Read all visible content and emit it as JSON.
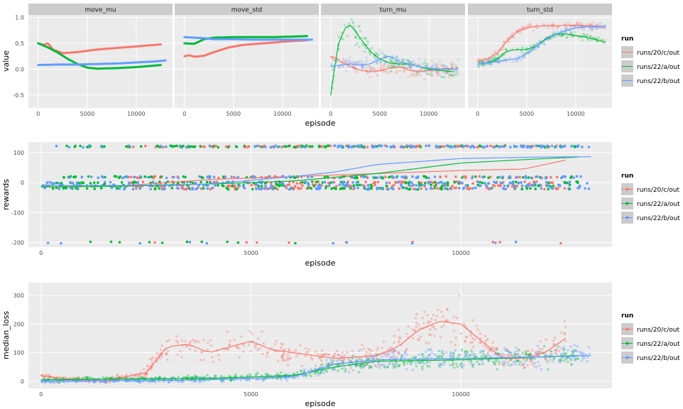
{
  "legend": {
    "title": "run",
    "items": [
      "runs/20/c/out",
      "runs/22/a/out",
      "runs/22/b/out"
    ]
  },
  "colors": {
    "runs/20/c/out": "#F8766D",
    "runs/22/a/out": "#00BA38",
    "runs/22/b/out": "#619CFF",
    "panel_bg": "#EBEBEB",
    "grid": "#FFFFFF",
    "strip_bg": "#CCCCCC"
  },
  "chart_data": [
    {
      "type": "line",
      "facets": [
        "move_mu",
        "move_std",
        "turn_mu",
        "turn_std"
      ],
      "xlabel": "episode",
      "ylabel": "value",
      "ylim": [
        -0.75,
        1.05
      ],
      "y_ticks": [
        "-0.5",
        "0.0",
        "0.5",
        "1.0"
      ],
      "x_ticks": [
        "0",
        "5000",
        "10000"
      ],
      "grid": true,
      "legend_position": "right",
      "panels": [
        {
          "facet": "move_mu",
          "series": [
            {
              "name": "runs/20/c/out",
              "x": [
                0,
                500,
                1000,
                1500,
                2500,
                4000,
                6000,
                8000,
                10000,
                12500
              ],
              "y": [
                0.5,
                0.47,
                0.5,
                0.38,
                0.31,
                0.33,
                0.38,
                0.41,
                0.44,
                0.48
              ]
            },
            {
              "name": "runs/22/a/out",
              "x": [
                0,
                1000,
                2000,
                3000,
                4000,
                5000,
                6000,
                8000,
                10000,
                12500
              ],
              "y": [
                0.5,
                0.42,
                0.32,
                0.2,
                0.1,
                0.03,
                0.01,
                0.02,
                0.04,
                0.08
              ]
            },
            {
              "name": "runs/22/b/out",
              "x": [
                0,
                2000,
                4000,
                6000,
                8000,
                10000,
                12000,
                13000
              ],
              "y": [
                0.08,
                0.09,
                0.09,
                0.1,
                0.11,
                0.13,
                0.15,
                0.17
              ]
            }
          ]
        },
        {
          "facet": "move_std",
          "series": [
            {
              "name": "runs/20/c/out",
              "x": [
                0,
                500,
                1000,
                2000,
                3000,
                4500,
                6000,
                8000,
                10000,
                12500
              ],
              "y": [
                0.25,
                0.27,
                0.24,
                0.26,
                0.33,
                0.42,
                0.47,
                0.5,
                0.53,
                0.56
              ]
            },
            {
              "name": "runs/22/a/out",
              "x": [
                0,
                1000,
                2000,
                3000,
                5000,
                7000,
                9000,
                11000,
                12500
              ],
              "y": [
                0.5,
                0.49,
                0.58,
                0.61,
                0.62,
                0.62,
                0.62,
                0.63,
                0.64
              ]
            },
            {
              "name": "runs/22/b/out",
              "x": [
                0,
                1000,
                2000,
                3000,
                5000,
                7000,
                9000,
                11000,
                13000
              ],
              "y": [
                0.62,
                0.61,
                0.6,
                0.58,
                0.58,
                0.57,
                0.57,
                0.57,
                0.57
              ]
            }
          ]
        },
        {
          "facet": "turn_mu",
          "series": [
            {
              "name": "runs/20/c/out",
              "x": [
                0,
                500,
                1000,
                2000,
                3000,
                4000,
                5000,
                6000,
                7000,
                8000,
                9000,
                10000,
                11000,
                12500
              ],
              "y": [
                0.25,
                0.22,
                0.15,
                0.05,
                -0.02,
                -0.05,
                -0.03,
                0.02,
                0.05,
                -0.02,
                -0.05,
                -0.03,
                0.0,
                0.02
              ]
            },
            {
              "name": "runs/22/a/out",
              "x": [
                0,
                300,
                800,
                1500,
                2000,
                2500,
                3000,
                4000,
                5000,
                6000,
                7000,
                8000,
                9000,
                10000,
                11000,
                12500
              ],
              "y": [
                -0.5,
                -0.1,
                0.5,
                0.8,
                0.85,
                0.75,
                0.6,
                0.35,
                0.2,
                0.12,
                0.1,
                0.1,
                0.05,
                0.0,
                -0.02,
                -0.05
              ]
            },
            {
              "name": "runs/22/b/out",
              "x": [
                0,
                1000,
                2000,
                3000,
                4000,
                5000,
                6000,
                7000,
                8000,
                9000,
                10000,
                11000,
                13000
              ],
              "y": [
                0.05,
                0.08,
                0.1,
                0.08,
                0.1,
                0.2,
                0.25,
                0.15,
                0.1,
                0.05,
                0.02,
                0.0,
                0.0
              ]
            }
          ]
        },
        {
          "facet": "turn_std",
          "series": [
            {
              "name": "runs/20/c/out",
              "x": [
                0,
                1000,
                2000,
                3000,
                4000,
                5000,
                6000,
                7000,
                8000,
                9000,
                10000,
                11000,
                12000,
                13000
              ],
              "y": [
                0.15,
                0.2,
                0.3,
                0.55,
                0.72,
                0.8,
                0.83,
                0.84,
                0.84,
                0.85,
                0.85,
                0.84,
                0.83,
                0.82
              ]
            },
            {
              "name": "runs/22/a/out",
              "x": [
                0,
                1000,
                2000,
                3000,
                4000,
                5000,
                6000,
                7000,
                8000,
                9000,
                10000,
                11000,
                12000,
                13000
              ],
              "y": [
                0.1,
                0.12,
                0.2,
                0.35,
                0.38,
                0.38,
                0.45,
                0.6,
                0.68,
                0.68,
                0.65,
                0.62,
                0.58,
                0.52
              ]
            },
            {
              "name": "runs/22/b/out",
              "x": [
                0,
                1000,
                2000,
                3000,
                4000,
                5000,
                6000,
                7000,
                8000,
                9000,
                10000,
                11000,
                12000,
                13000
              ],
              "y": [
                0.1,
                0.12,
                0.15,
                0.18,
                0.2,
                0.3,
                0.45,
                0.58,
                0.68,
                0.75,
                0.8,
                0.82,
                0.82,
                0.83
              ]
            }
          ]
        }
      ]
    },
    {
      "type": "scatter",
      "xlabel": "episode",
      "ylabel": "rewards",
      "ylim": [
        -215,
        135
      ],
      "xlim": [
        -300,
        13600
      ],
      "y_ticks": [
        "100",
        "0",
        "-100",
        "-200"
      ],
      "x_ticks": [
        "0",
        "5000",
        "10000"
      ],
      "grid": true,
      "legend_position": "right",
      "levels": [
        120,
        18,
        0,
        -10,
        -20,
        -200
      ],
      "ranges": {
        "runs/20/c/out": [
          2000,
          12500
        ],
        "runs/22/a/out": [
          0,
          12800
        ],
        "runs/22/b/out": [
          0,
          13100
        ]
      },
      "smooth": [
        {
          "name": "runs/20/c/out",
          "x": [
            0,
            2000,
            4000,
            6000,
            8000,
            10000,
            11500,
            12500
          ],
          "y": [
            -15,
            -10,
            10,
            20,
            30,
            40,
            45,
            75
          ]
        },
        {
          "name": "runs/22/a/out",
          "x": [
            0,
            2000,
            4000,
            6000,
            8000,
            10000,
            12000,
            12800
          ],
          "y": [
            -15,
            -12,
            -5,
            5,
            30,
            65,
            80,
            85
          ]
        },
        {
          "name": "runs/22/b/out",
          "x": [
            0,
            2000,
            4000,
            6000,
            7000,
            8000,
            10000,
            12000,
            13100
          ],
          "y": [
            -10,
            -10,
            -5,
            20,
            35,
            60,
            80,
            85,
            86
          ]
        }
      ]
    },
    {
      "type": "scatter",
      "xlabel": "episode",
      "ylabel": "median_loss",
      "ylim": [
        -25,
        345
      ],
      "xlim": [
        -300,
        13600
      ],
      "y_ticks": [
        "0",
        "100",
        "200",
        "300"
      ],
      "x_ticks": [
        "0",
        "5000",
        "10000"
      ],
      "grid": true,
      "legend_position": "right",
      "smooth": [
        {
          "name": "runs/20/c/out",
          "x": [
            0,
            500,
            1000,
            1500,
            2500,
            3000,
            3500,
            4000,
            4500,
            5000,
            5500,
            6000,
            6500,
            7000,
            8000,
            8500,
            9000,
            9500,
            10000,
            10500,
            11000,
            11500,
            12000,
            12500
          ],
          "y": [
            20,
            10,
            5,
            0,
            30,
            120,
            130,
            100,
            120,
            140,
            110,
            100,
            90,
            80,
            90,
            120,
            180,
            210,
            200,
            140,
            80,
            80,
            100,
            150
          ]
        },
        {
          "name": "runs/22/a/out",
          "x": [
            0,
            2000,
            4000,
            6000,
            7000,
            8000,
            10000,
            12800
          ],
          "y": [
            5,
            8,
            10,
            20,
            50,
            70,
            75,
            90
          ]
        },
        {
          "name": "runs/22/b/out",
          "x": [
            0,
            2000,
            4000,
            6000,
            7000,
            8000,
            10000,
            12000,
            13100
          ],
          "y": [
            0,
            2,
            5,
            15,
            60,
            75,
            80,
            85,
            90
          ]
        }
      ]
    }
  ]
}
